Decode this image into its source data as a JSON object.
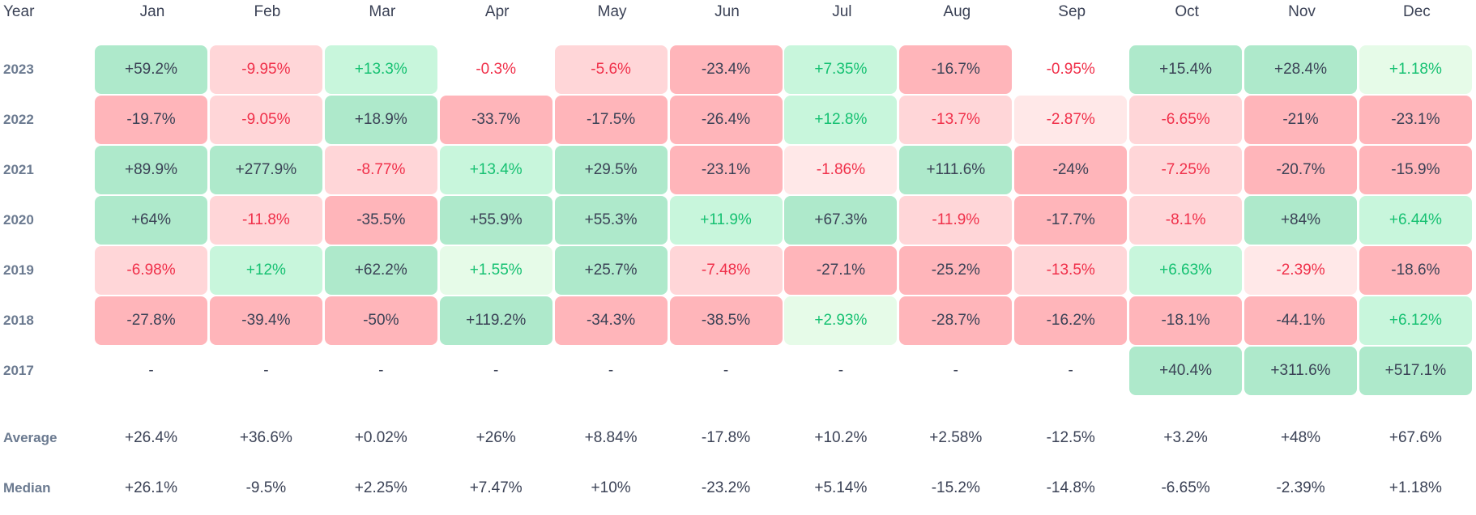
{
  "chart_data": {
    "type": "heatmap",
    "title": "",
    "corner_label": "Year",
    "months": [
      "Jan",
      "Feb",
      "Mar",
      "Apr",
      "May",
      "Jun",
      "Jul",
      "Aug",
      "Sep",
      "Oct",
      "Nov",
      "Dec"
    ],
    "rows": [
      {
        "year": "2023",
        "values": [
          "+59.2%",
          "-9.95%",
          "+13.3%",
          "-0.3%",
          "-5.6%",
          "-23.4%",
          "+7.35%",
          "-16.7%",
          "-0.95%",
          "+15.4%",
          "+28.4%",
          "+1.18%"
        ]
      },
      {
        "year": "2022",
        "values": [
          "-19.7%",
          "-9.05%",
          "+18.9%",
          "-33.7%",
          "-17.5%",
          "-26.4%",
          "+12.8%",
          "-13.7%",
          "-2.87%",
          "-6.65%",
          "-21%",
          "-23.1%"
        ]
      },
      {
        "year": "2021",
        "values": [
          "+89.9%",
          "+277.9%",
          "-8.77%",
          "+13.4%",
          "+29.5%",
          "-23.1%",
          "-1.86%",
          "+111.6%",
          "-24%",
          "-7.25%",
          "-20.7%",
          "-15.9%"
        ]
      },
      {
        "year": "2020",
        "values": [
          "+64%",
          "-11.8%",
          "-35.5%",
          "+55.9%",
          "+55.3%",
          "+11.9%",
          "+67.3%",
          "-11.9%",
          "-17.7%",
          "-8.1%",
          "+84%",
          "+6.44%"
        ]
      },
      {
        "year": "2019",
        "values": [
          "-6.98%",
          "+12%",
          "+62.2%",
          "+1.55%",
          "+25.7%",
          "-7.48%",
          "-27.1%",
          "-25.2%",
          "-13.5%",
          "+6.63%",
          "-2.39%",
          "-18.6%"
        ]
      },
      {
        "year": "2018",
        "values": [
          "-27.8%",
          "-39.4%",
          "-50%",
          "+119.2%",
          "-34.3%",
          "-38.5%",
          "+2.93%",
          "-28.7%",
          "-16.2%",
          "-18.1%",
          "-44.1%",
          "+6.12%"
        ]
      },
      {
        "year": "2017",
        "values": [
          "-",
          "-",
          "-",
          "-",
          "-",
          "-",
          "-",
          "-",
          "-",
          "+40.4%",
          "+311.6%",
          "+517.1%"
        ]
      }
    ],
    "average": {
      "label": "Average",
      "values": [
        "+26.4%",
        "+36.6%",
        "+0.02%",
        "+26%",
        "+8.84%",
        "-17.8%",
        "+10.2%",
        "+2.58%",
        "-12.5%",
        "+3.2%",
        "+48%",
        "+67.6%"
      ]
    },
    "median": {
      "label": "Median",
      "values": [
        "+26.1%",
        "-9.5%",
        "+2.25%",
        "+7.47%",
        "+10%",
        "-23.2%",
        "+5.14%",
        "-15.2%",
        "-14.8%",
        "-6.65%",
        "-2.39%",
        "+1.18%"
      ]
    }
  },
  "colors": {
    "strong_green": "#aee9cb",
    "medium_green": "#c8f6dc",
    "light_green": "#e6fbe8",
    "strong_red": "#ffb5ba",
    "medium_red": "#ffd6d8",
    "light_red": "#ffe8e8",
    "green_text": "#16c172",
    "red_text": "#f0304a",
    "dark_text": "#3b4256"
  }
}
